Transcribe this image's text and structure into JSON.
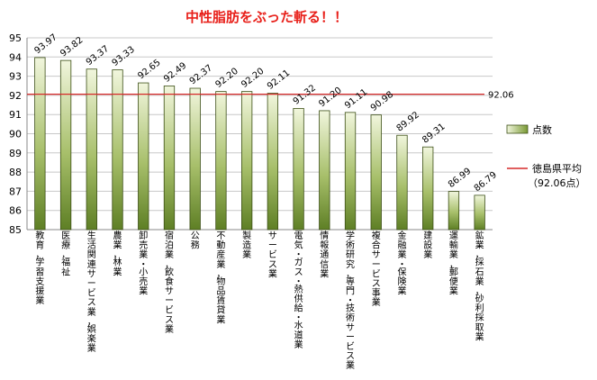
{
  "chart_data": {
    "type": "bar",
    "title": "中性脂肪をぶった斬る！！",
    "xlabel": "",
    "ylabel": "",
    "ylim": [
      85,
      95
    ],
    "ytick_step": 1,
    "grid": true,
    "legend_position": "right",
    "categories": [
      "教育，学習支援業",
      "医療，福祉",
      "生活関連サービス業，娯楽業",
      "農業，林業",
      "卸売業・小売業",
      "宿泊業，飲食サービス業",
      "公務",
      "不動産業，物品賃貸業",
      "製造業",
      "サービス業",
      "電気・ガス・熱供給・水道業",
      "情報通信業",
      "学術研究，専門・技術サービス業",
      "複合サービス事業",
      "金融業・保険業",
      "建設業",
      "運輸業，郵便業",
      "鉱業，採石業，砂利採取業"
    ],
    "series": [
      {
        "name": "点数",
        "type": "bar",
        "values": [
          93.97,
          93.82,
          93.37,
          93.33,
          92.65,
          92.49,
          92.37,
          92.2,
          92.2,
          92.11,
          91.32,
          91.2,
          91.11,
          90.98,
          89.92,
          89.31,
          86.99,
          86.79
        ],
        "value_labels": [
          "93.97",
          "93.82",
          "93.37",
          "93.33",
          "92.65",
          "92.49",
          "92.37",
          "92.20",
          "92.20",
          "92.11",
          "91.32",
          "91.20",
          "91.11",
          "90.98",
          "89.92",
          "89.31",
          "86.99",
          "86.79"
        ]
      },
      {
        "name": "徳島県平均",
        "name_line2": "（92.06点）",
        "type": "line",
        "value": 92.06,
        "value_label": "92.06",
        "color": "#d62a2a"
      }
    ],
    "colors": {
      "bar_top": "#f1f6dd",
      "bar_bottom": "#5e7f25",
      "bar_stroke": "#3c4f16",
      "grid": "#c8c8c8",
      "axis": "#888888",
      "title": "#e8201a"
    }
  }
}
